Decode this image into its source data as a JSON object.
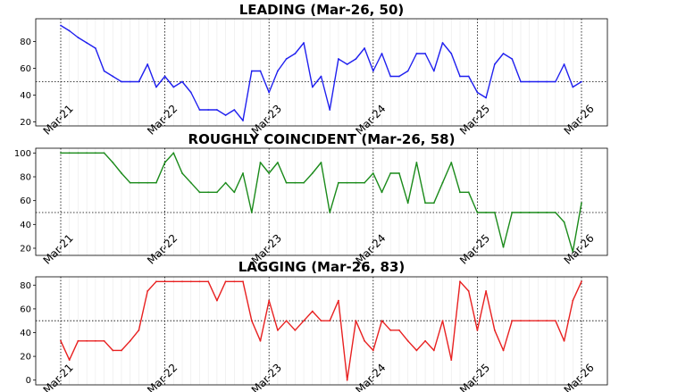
{
  "chart_data": [
    {
      "type": "line",
      "title": "LEADING (Mar-26, 50)",
      "color": "#1f1fef",
      "ylim": [
        17,
        97
      ],
      "yticks": [
        20,
        40,
        60,
        80
      ],
      "reference_line": 50,
      "x_labels": [
        "Mar-21",
        "Mar-22",
        "Mar-23",
        "Mar-24",
        "Mar-25",
        "Mar-26"
      ],
      "x_label_months": [
        0,
        12,
        24,
        36,
        48,
        60
      ],
      "x": [
        0,
        1,
        2,
        3,
        4,
        5,
        6,
        7,
        8,
        9,
        10,
        11,
        12,
        13,
        14,
        15,
        16,
        17,
        18,
        19,
        20,
        21,
        22,
        23,
        24,
        25,
        26,
        27,
        28,
        29,
        30,
        31,
        32,
        33,
        34,
        35,
        36,
        37,
        38,
        39,
        40,
        41,
        42,
        43,
        44,
        45,
        46,
        47,
        48,
        49,
        50,
        51,
        52,
        53,
        54,
        55,
        56,
        57,
        58,
        59,
        60
      ],
      "values": [
        92,
        88,
        83,
        79,
        75,
        58,
        54,
        50,
        50,
        50,
        63,
        46,
        54,
        46,
        50,
        42,
        29,
        29,
        29,
        25,
        29,
        21,
        58,
        58,
        42,
        58,
        67,
        71,
        79,
        46,
        54,
        29,
        67,
        63,
        67,
        75,
        58,
        71,
        54,
        54,
        58,
        71,
        71,
        58,
        79,
        71,
        54,
        54,
        42,
        38,
        63,
        71,
        67,
        50,
        50,
        50,
        50,
        50,
        63,
        46,
        50
      ]
    },
    {
      "type": "line",
      "title": "ROUGHLY COINCIDENT (Mar-26, 58)",
      "color": "#1a8a1a",
      "ylim": [
        14,
        104
      ],
      "yticks": [
        20,
        40,
        60,
        80,
        100
      ],
      "reference_line": 50,
      "x_labels": [
        "Mar-21",
        "Mar-22",
        "Mar-23",
        "Mar-24",
        "Mar-25",
        "Mar-26"
      ],
      "x_label_months": [
        0,
        12,
        24,
        36,
        48,
        60
      ],
      "x": [
        0,
        1,
        2,
        3,
        4,
        5,
        6,
        7,
        8,
        9,
        10,
        11,
        12,
        13,
        14,
        15,
        16,
        17,
        18,
        19,
        20,
        21,
        22,
        23,
        24,
        25,
        26,
        27,
        28,
        29,
        30,
        31,
        32,
        33,
        34,
        35,
        36,
        37,
        38,
        39,
        40,
        41,
        42,
        43,
        44,
        45,
        46,
        47,
        48,
        49,
        50,
        51,
        52,
        53,
        54,
        55,
        56,
        57,
        58,
        59,
        60
      ],
      "values": [
        100,
        100,
        100,
        100,
        100,
        100,
        92,
        83,
        75,
        75,
        75,
        75,
        92,
        100,
        83,
        75,
        67,
        67,
        67,
        75,
        67,
        83,
        50,
        92,
        83,
        92,
        75,
        75,
        75,
        83,
        92,
        50,
        75,
        75,
        75,
        75,
        83,
        67,
        83,
        83,
        58,
        92,
        58,
        58,
        75,
        92,
        67,
        67,
        50,
        50,
        50,
        21,
        50,
        50,
        50,
        50,
        50,
        50,
        42,
        17,
        58
      ]
    },
    {
      "type": "line",
      "title": "LAGGING (Mar-26, 83)",
      "color": "#e82020",
      "ylim": [
        -4,
        87
      ],
      "yticks": [
        0,
        20,
        40,
        60,
        80
      ],
      "reference_line": 50,
      "x_labels": [
        "Mar-21",
        "Mar-22",
        "Mar-23",
        "Mar-24",
        "Mar-25",
        "Mar-26"
      ],
      "x_label_months": [
        0,
        12,
        24,
        36,
        48,
        60
      ],
      "x": [
        0,
        1,
        2,
        3,
        4,
        5,
        6,
        7,
        8,
        9,
        10,
        11,
        12,
        13,
        14,
        15,
        16,
        17,
        18,
        19,
        20,
        21,
        22,
        23,
        24,
        25,
        26,
        27,
        28,
        29,
        30,
        31,
        32,
        33,
        34,
        35,
        36,
        37,
        38,
        39,
        40,
        41,
        42,
        43,
        44,
        45,
        46,
        47,
        48,
        49,
        50,
        51,
        52,
        53,
        54,
        55,
        56,
        57,
        58,
        59,
        60
      ],
      "values": [
        33,
        17,
        33,
        33,
        33,
        33,
        25,
        25,
        33,
        42,
        75,
        83,
        83,
        83,
        83,
        83,
        83,
        83,
        67,
        83,
        83,
        83,
        50,
        33,
        67,
        42,
        50,
        42,
        50,
        58,
        50,
        50,
        67,
        0,
        50,
        33,
        25,
        50,
        42,
        42,
        33,
        25,
        33,
        25,
        50,
        17,
        83,
        75,
        42,
        75,
        42,
        25,
        50,
        50,
        50,
        50,
        50,
        50,
        33,
        67,
        83
      ]
    }
  ]
}
